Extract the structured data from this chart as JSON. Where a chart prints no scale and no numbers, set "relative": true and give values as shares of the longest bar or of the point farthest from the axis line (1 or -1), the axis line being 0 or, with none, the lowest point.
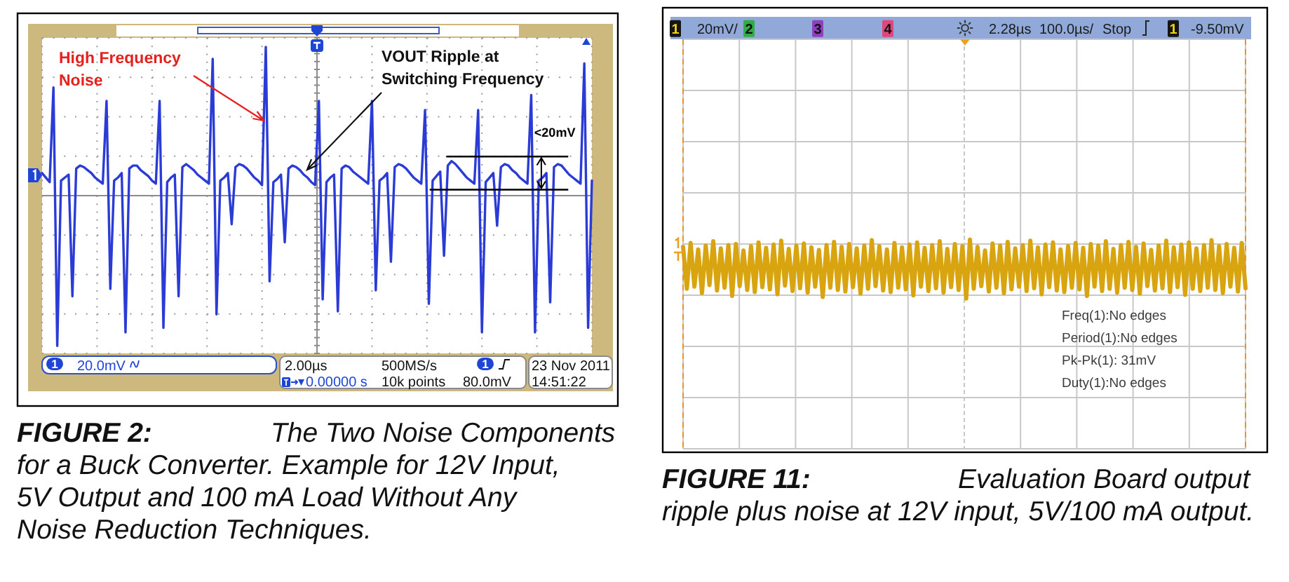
{
  "chart_data": [
    {
      "type": "line",
      "title": "FIGURE 2:",
      "subtitle": "The Two Noise Components for a Buck Converter. Example for 12V Input, 5V Output and 100 mA Load Without Any Noise Reduction Techniques.",
      "relative": true,
      "grid": true,
      "categories": [
        null,
        null,
        null,
        null,
        null,
        null,
        null,
        null,
        null,
        null,
        null,
        null,
        null,
        null,
        null,
        null,
        null,
        null,
        null,
        null,
        null,
        null,
        null,
        null,
        null,
        null,
        null,
        null,
        null,
        null,
        null,
        null,
        null,
        null,
        null,
        null,
        null,
        null,
        null,
        null,
        null,
        null,
        null,
        null,
        null,
        null,
        null,
        null,
        null,
        null,
        null,
        null,
        null,
        null,
        null,
        null,
        null,
        null,
        null,
        null,
        null,
        null,
        null,
        null,
        null,
        null,
        null,
        null,
        null,
        null,
        null,
        null,
        null,
        null,
        null,
        null,
        null,
        null,
        null,
        null,
        null,
        null,
        null,
        null,
        null,
        null,
        null,
        null,
        null,
        null,
        null,
        null,
        null,
        null,
        null,
        null,
        null,
        null,
        null,
        null,
        null,
        null,
        null,
        null,
        null,
        null,
        null,
        null,
        null,
        null,
        null,
        null,
        null,
        null,
        null,
        null,
        null,
        null,
        null,
        null,
        null,
        null,
        null,
        null,
        null,
        null,
        null,
        null,
        null,
        null,
        null,
        null,
        null,
        null,
        null,
        null,
        null,
        null,
        null,
        null,
        null,
        null,
        null,
        null,
        null,
        null
      ],
      "color": "#2b3bd6",
      "values": [
        0.15,
        0.12,
        0.09,
        0.72,
        -1,
        0.1,
        0.12,
        0.14,
        -0.67,
        0.18,
        0.2,
        0.19,
        0.17,
        0.15,
        0.12,
        0.1,
        0.08,
        0.63,
        -0.62,
        0.1,
        0.12,
        0.15,
        -0.91,
        0.18,
        0.2,
        0.2,
        0.17,
        0.15,
        0.13,
        0.1,
        0.08,
        0.63,
        -0.88,
        0.09,
        0.12,
        0.14,
        -0.67,
        0.19,
        0.21,
        0.19,
        0.17,
        0.14,
        0.12,
        0.1,
        0.08,
        0.91,
        -0.79,
        0.1,
        0.12,
        0.15,
        -0.19,
        0.19,
        0.21,
        0.2,
        0.18,
        0.15,
        0.12,
        0.1,
        0.07,
        0.99,
        -0.57,
        0.09,
        0.11,
        0.14,
        -0.31,
        0.18,
        0.2,
        0.19,
        0.17,
        0.14,
        0.12,
        0.09,
        0.07,
        0.63,
        -0.69,
        0.09,
        0.12,
        0.14,
        -0.77,
        0.18,
        0.2,
        0.19,
        0.16,
        0.14,
        0.12,
        0.1,
        0.08,
        0.63,
        -0.63,
        0.1,
        0.12,
        0.15,
        -0.44,
        0.19,
        0.21,
        0.2,
        0.18,
        0.15,
        0.12,
        0.1,
        0.08,
        0.57,
        -0.72,
        0.1,
        0.13,
        0.16,
        -0.4,
        0.2,
        0.23,
        0.21,
        0.18,
        0.15,
        0.12,
        0.1,
        0.08,
        0.57,
        -0.91,
        0.09,
        0.12,
        0.15,
        -0.2,
        0.19,
        0.21,
        0.2,
        0.17,
        0.15,
        0.12,
        0.1,
        0.08,
        0.67,
        -0.91,
        0.1,
        0.12,
        0.15,
        -0.71,
        0.19,
        0.21,
        0.2,
        0.17,
        0.14,
        0.12,
        0.1,
        0.08,
        0.88,
        -0.88,
        0.1
      ],
      "ref_lines": [
        {
          "axis": "y",
          "value": 0.26,
          "label": "<20mV",
          "color": "#000000"
        },
        {
          "axis": "y",
          "value": 0.04,
          "color": "#000000"
        }
      ],
      "annotations": [
        "High Frequency Noise",
        "VOUT Ripple at Switching Frequency",
        "1",
        "20.0mV",
        "2.00µs",
        "0.00000 s",
        "500MS/s",
        "10k points",
        "1",
        "80.0mV",
        "23 Nov 2011",
        "14:51:22"
      ]
    },
    {
      "type": "line",
      "title": "FIGURE 11:",
      "subtitle": "Evaluation Board output ripple plus noise at 12V input, 5V/100 mA output.",
      "relative": true,
      "grid": true,
      "categories": [
        null,
        null,
        null,
        null,
        null,
        null,
        null,
        null,
        null,
        null,
        null,
        null,
        null,
        null,
        null,
        null,
        null,
        null,
        null,
        null,
        null,
        null,
        null,
        null,
        null,
        null,
        null,
        null,
        null,
        null,
        null,
        null,
        null,
        null,
        null,
        null,
        null,
        null,
        null,
        null,
        null,
        null,
        null,
        null,
        null,
        null,
        null,
        null,
        null,
        null,
        null,
        null,
        null,
        null,
        null,
        null,
        null,
        null,
        null,
        null,
        null,
        null,
        null,
        null,
        null,
        null,
        null,
        null,
        null,
        null,
        null,
        null,
        null,
        null,
        null,
        null,
        null,
        null,
        null,
        null,
        null,
        null,
        null,
        null,
        null,
        null,
        null,
        null,
        null,
        null,
        null,
        null,
        null,
        null,
        null,
        null,
        null,
        null,
        null,
        null,
        null,
        null,
        null,
        null,
        null,
        null,
        null,
        null,
        null,
        null,
        null,
        null,
        null,
        null,
        null,
        null,
        null,
        null,
        null,
        null,
        null,
        null,
        null,
        null,
        null,
        null,
        null,
        null,
        null,
        null,
        null,
        null,
        null,
        null,
        null,
        null,
        null,
        null,
        null,
        null,
        null,
        null,
        null,
        null,
        null,
        null,
        null,
        null,
        null,
        null
      ],
      "color": "#d8a410",
      "values": [
        -0.05,
        -0.82,
        0.02,
        -0.78,
        -0.1,
        -0.9,
        -0.03,
        -0.75,
        0.05,
        -0.85,
        -0.08,
        -0.8,
        -0.02,
        -0.95,
        0.0,
        -0.77,
        -0.12,
        -0.84,
        -0.04,
        -0.88,
        0.03,
        -0.79,
        -0.07,
        -0.83,
        -0.01,
        -0.92,
        0.06,
        -0.76,
        -0.09,
        -0.86,
        -0.03,
        -0.81,
        0.01,
        -0.89,
        -0.06,
        -0.78,
        -0.11,
        -0.97,
        -0.02,
        -0.8,
        0.04,
        -0.84,
        -0.05,
        -0.87,
        0.0,
        -0.79,
        -0.08,
        -0.91,
        -0.03,
        -0.82,
        0.07,
        -0.77,
        -0.04,
        -0.85,
        -0.1,
        -0.88,
        0.02,
        -0.8,
        -0.06,
        -0.83,
        -0.01,
        -0.94,
        0.03,
        -0.78,
        -0.07,
        -0.86,
        -0.02,
        -0.81,
        0.05,
        -0.89,
        -0.09,
        -0.79,
        0.0,
        -0.84,
        -0.04,
        -1,
        0.08,
        -0.82,
        -0.05,
        -0.77,
        -0.12,
        -0.87,
        0.01,
        -0.8,
        -0.03,
        -0.9,
        0.04,
        -0.83,
        -0.08,
        -0.78,
        -0.02,
        -0.86,
        0.06,
        -0.81,
        -0.06,
        -0.92,
        -0.01,
        -0.79,
        0.03,
        -0.85,
        -0.1,
        -0.88,
        -0.04,
        -0.8,
        0.02,
        -0.83,
        -0.07,
        -0.95,
        0.0,
        -0.78,
        -0.03,
        -0.86,
        0.05,
        -0.82,
        -0.09,
        -0.89,
        -0.02,
        -0.8,
        0.04,
        -0.84,
        -0.05,
        -0.91,
        0.01,
        -0.77,
        -0.11,
        -0.85,
        -0.03,
        -0.81,
        0.06,
        -0.88,
        -0.06,
        -0.79,
        -0.01,
        -0.93,
        0.03,
        -0.82,
        -0.08,
        -0.86,
        -0.02,
        -0.8,
        0.07,
        -0.84,
        -0.04,
        -0.9,
        0.0,
        -0.78,
        -0.07,
        -0.87,
        0.02,
        -0.81
      ],
      "annotations": [
        "1",
        "20mV/",
        "2",
        "3",
        "4",
        "2.28µs",
        "100.0µs/",
        "Stop",
        "1",
        "-9.50mV",
        "Freq(1):No edges",
        "Period(1):No edges",
        "Pk-Pk(1): 31mV",
        "Duty(1):No edges"
      ]
    }
  ]
}
